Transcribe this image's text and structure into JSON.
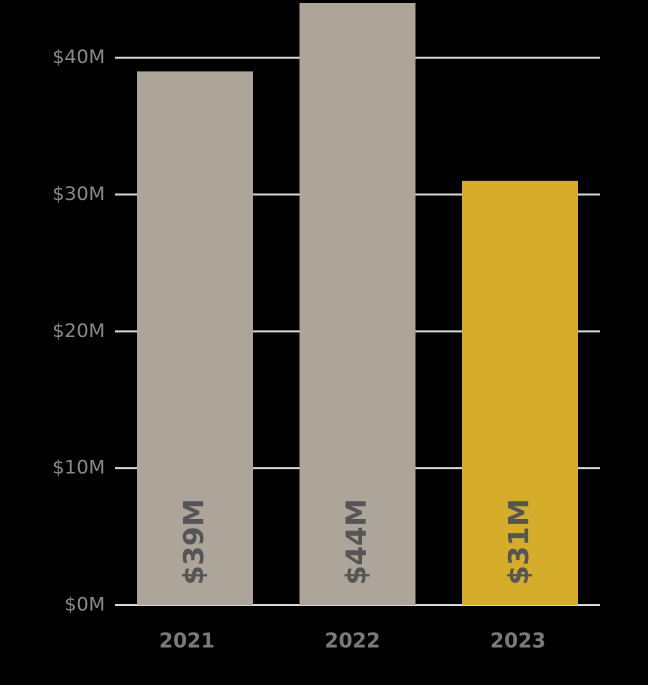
{
  "chart_data": {
    "type": "bar",
    "categories": [
      "2021",
      "2022",
      "2023"
    ],
    "values": [
      39,
      44,
      31
    ],
    "value_labels": [
      "$39M",
      "$44M",
      "$31M"
    ],
    "colors": [
      "#ada49a",
      "#ada49a",
      "#d5ad2b"
    ],
    "ylim": [
      0,
      44
    ],
    "yticks": [
      {
        "value": 0,
        "label": "$0M"
      },
      {
        "value": 10,
        "label": "$10M"
      },
      {
        "value": 20,
        "label": "$20M"
      },
      {
        "value": 30,
        "label": "$30M"
      },
      {
        "value": 40,
        "label": "$40M"
      }
    ],
    "grid": true
  }
}
